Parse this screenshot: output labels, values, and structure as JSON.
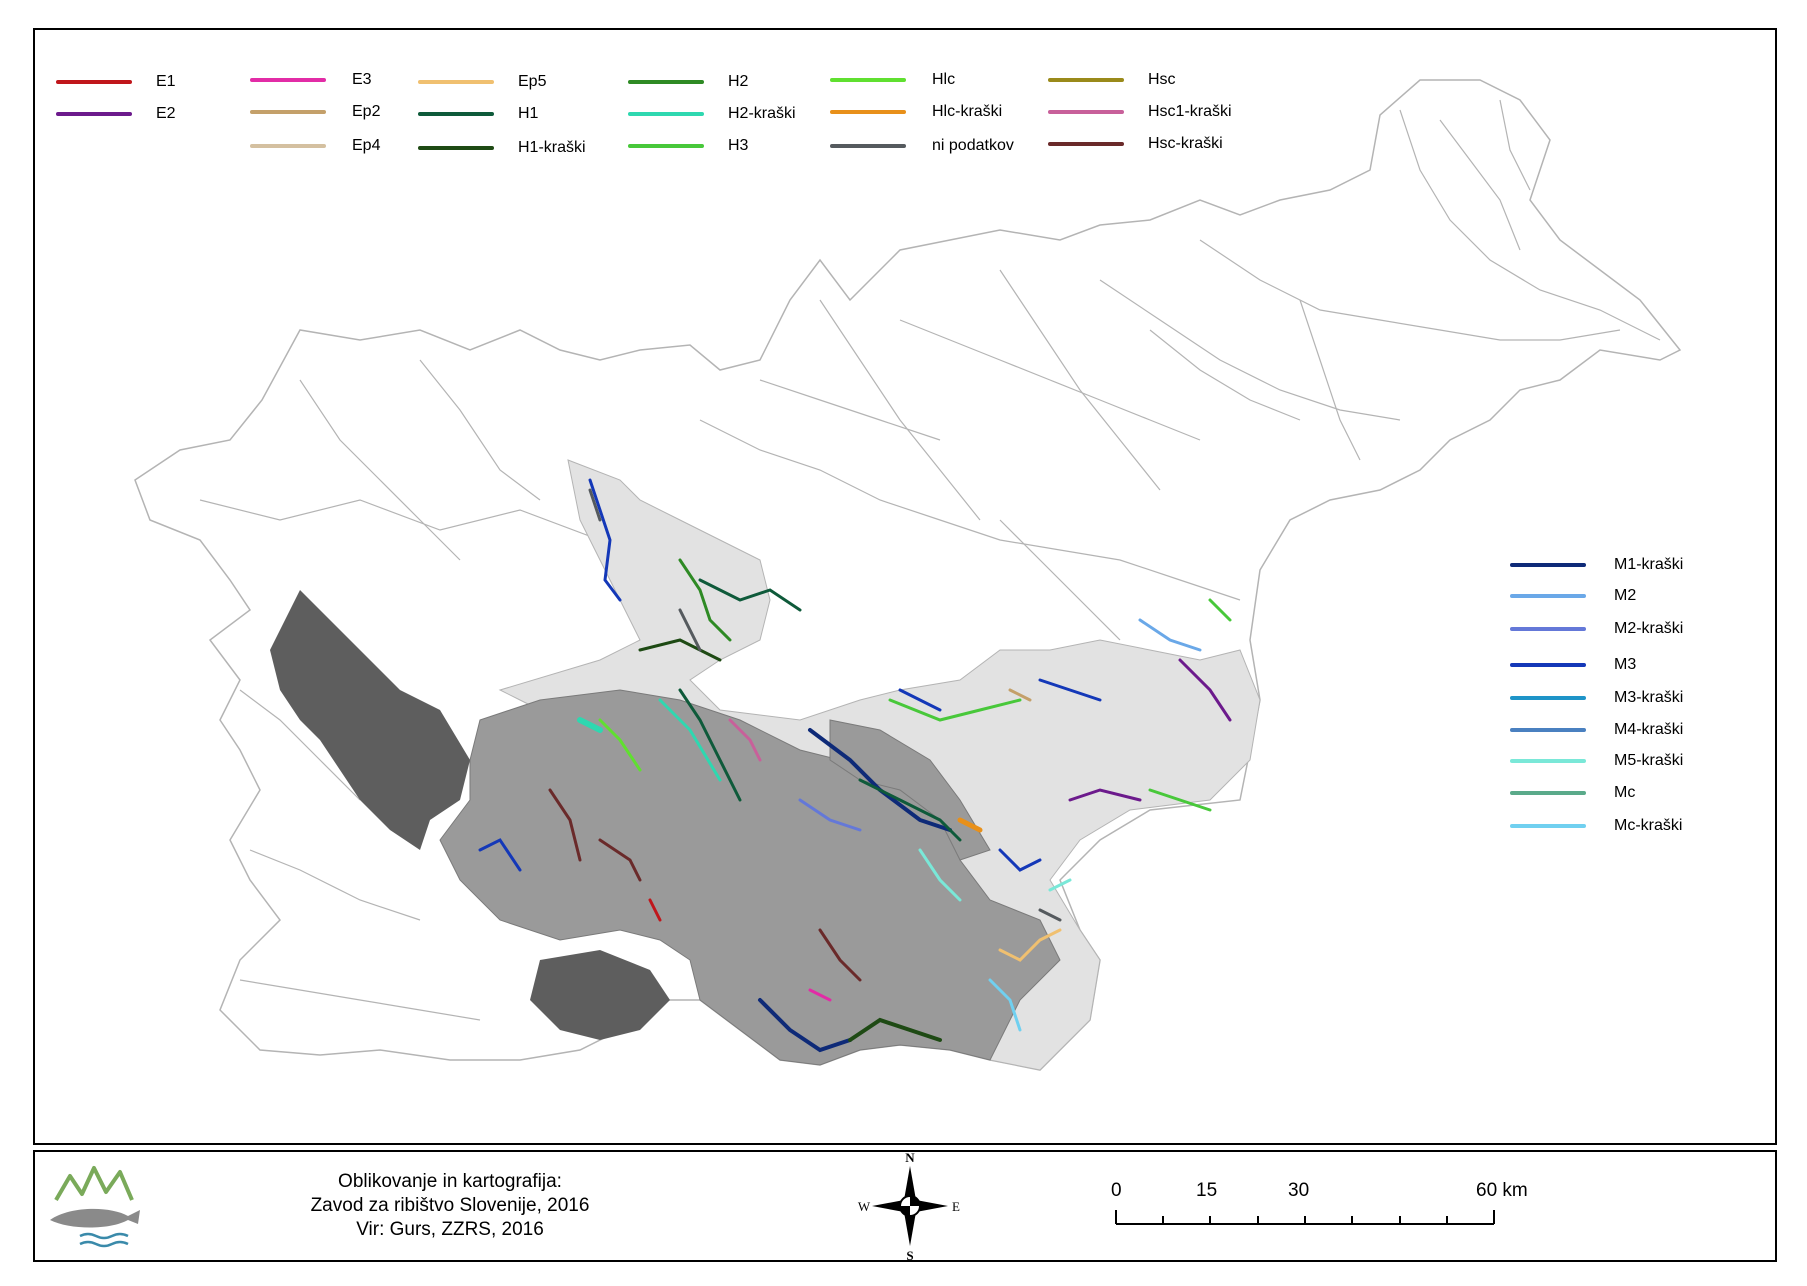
{
  "legend_left": [
    {
      "label": "E1",
      "color": "#c0161b"
    },
    {
      "label": "E2",
      "color": "#6c1a8c"
    },
    {
      "label": "E3",
      "color": "#e22ca6"
    },
    {
      "label": "Ep2",
      "color": "#c4a06a"
    },
    {
      "label": "Ep4",
      "color": "#d4c0a0"
    },
    {
      "label": "Ep5",
      "color": "#f0c070"
    },
    {
      "label": "H1",
      "color": "#0e5a3a"
    },
    {
      "label": "H1-kraški",
      "color": "#1e4a14"
    },
    {
      "label": "H2",
      "color": "#2e8a24"
    },
    {
      "label": "H2-kraški",
      "color": "#2ed8b0"
    },
    {
      "label": "H3",
      "color": "#48c83a"
    },
    {
      "label": "Hlc",
      "color": "#60e030"
    },
    {
      "label": "Hlc-kraški",
      "color": "#e8901a"
    },
    {
      "label": "ni podatkov",
      "color": "#555a5e"
    },
    {
      "label": "Hsc",
      "color": "#9a8a1a"
    },
    {
      "label": "Hsc1-kraški",
      "color": "#c8609a"
    },
    {
      "label": "Hsc-kraški",
      "color": "#6a2a2a"
    }
  ],
  "legend_right": [
    {
      "label": "M1-kraški",
      "color": "#0e2a78"
    },
    {
      "label": "M2",
      "color": "#6aa8e8"
    },
    {
      "label": "M2-kraški",
      "color": "#6478d8"
    },
    {
      "label": "M3",
      "color": "#1438b8"
    },
    {
      "label": "M3-kraški",
      "color": "#1e94c8"
    },
    {
      "label": "M4-kraški",
      "color": "#4a80c0"
    },
    {
      "label": "M5-kraški",
      "color": "#7ae8d8"
    },
    {
      "label": "Mc",
      "color": "#5aaa8a"
    },
    {
      "label": "Mc-kraški",
      "color": "#70d0f0"
    }
  ],
  "credit": {
    "line1": "Oblikovanje in kartografija:",
    "line2": "Zavod za ribištvo Slovenije, 2016",
    "line3": "Vir: Gurs, ZZRS, 2016"
  },
  "compass": {
    "n": "N",
    "s": "S",
    "e": "E",
    "w": "W"
  },
  "scale": {
    "ticks": [
      "0",
      "15",
      "30",
      "60 km"
    ]
  },
  "colors": {
    "region_light": "#e2e2e2",
    "region_mid": "#9a9a9a",
    "region_dark": "#5e5e5e",
    "rivers": "#b4b4b4"
  }
}
